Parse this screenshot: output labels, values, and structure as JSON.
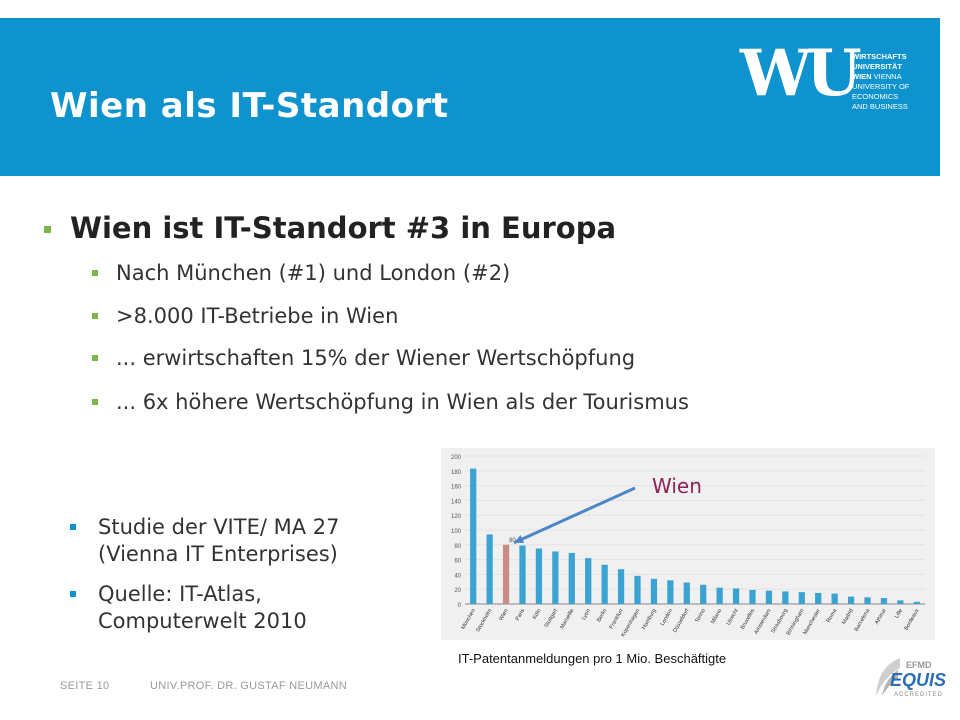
{
  "header": {
    "title": "Wien als IT-Standort",
    "logo_mark": "WU",
    "logo_lines": [
      {
        "text": "WIRTSCHAFTS",
        "bold": true
      },
      {
        "text": "UNIVERSITÄT",
        "bold": true
      },
      {
        "text": "WIEN",
        "bold": true,
        "rest": " VIENNA"
      },
      {
        "text": "UNIVERSITY OF",
        "bold": false
      },
      {
        "text": "ECONOMICS",
        "bold": false
      },
      {
        "text": "AND BUSINESS",
        "bold": false
      }
    ]
  },
  "main_bullets": {
    "heading": "Wien ist IT-Standort #3 in Europa",
    "items": [
      "Nach München (#1) und London (#2)",
      ">8.000 IT-Betriebe in Wien",
      "... erwirtschaften 15% der Wiener Wertschöpfung",
      "... 6x höhere Wertschöpfung in Wien als der Tourismus"
    ]
  },
  "side_bullets": {
    "items": [
      [
        "Studie der VITE/ MA 27",
        "(Vienna IT Enterprises)"
      ],
      [
        "Quelle: IT-Atlas,",
        "Computerwelt 2010"
      ]
    ]
  },
  "chart_callout": "Wien",
  "chart_caption": "IT-Patentanmeldungen pro 1 Mio. Beschäftigte",
  "chart_data": {
    "type": "bar",
    "categories": [
      "München",
      "Stockholm",
      "Wien",
      "Paris",
      "Köln",
      "Stuttgart",
      "Marseille",
      "Lyon",
      "Berlin",
      "Frankfurt",
      "Kopenhagen",
      "Hamburg",
      "London",
      "Düsseldorf",
      "Torino",
      "Milano",
      "Utrecht",
      "Bruxelles",
      "Amsterdam",
      "Strasbourg",
      "Birmingham",
      "Manchester",
      "Roma",
      "Madrid",
      "Barcelona",
      "Athinai",
      "Lille",
      "Bordeaux"
    ],
    "values": [
      183,
      94,
      80,
      79,
      75,
      71,
      69,
      62,
      53,
      47,
      38,
      34,
      32,
      29,
      26,
      22,
      21,
      19,
      18,
      17,
      16,
      15,
      14,
      10,
      9,
      8,
      5,
      3
    ],
    "highlight_index": 2,
    "data_labels": [
      {
        "index": 2,
        "text": "80"
      }
    ],
    "ylim": [
      0,
      200
    ],
    "yticks": [
      0,
      20,
      40,
      60,
      80,
      100,
      120,
      140,
      160,
      180,
      200
    ],
    "bar_color": "#3aa3d1",
    "highlight_color": "#c98b86",
    "xlabel": "",
    "ylabel": ""
  },
  "footer": {
    "page": "SEITE 10",
    "author": "UNIV.PROF. DR. GUSTAF NEUMANN"
  },
  "accreditation": {
    "top": "EFMD",
    "main": "EQUIS",
    "sub": "ACCREDITED"
  },
  "colors": {
    "header_blue": "#0f93cf",
    "bullet_green": "#7ab648",
    "callout_purple": "#8a2457"
  }
}
